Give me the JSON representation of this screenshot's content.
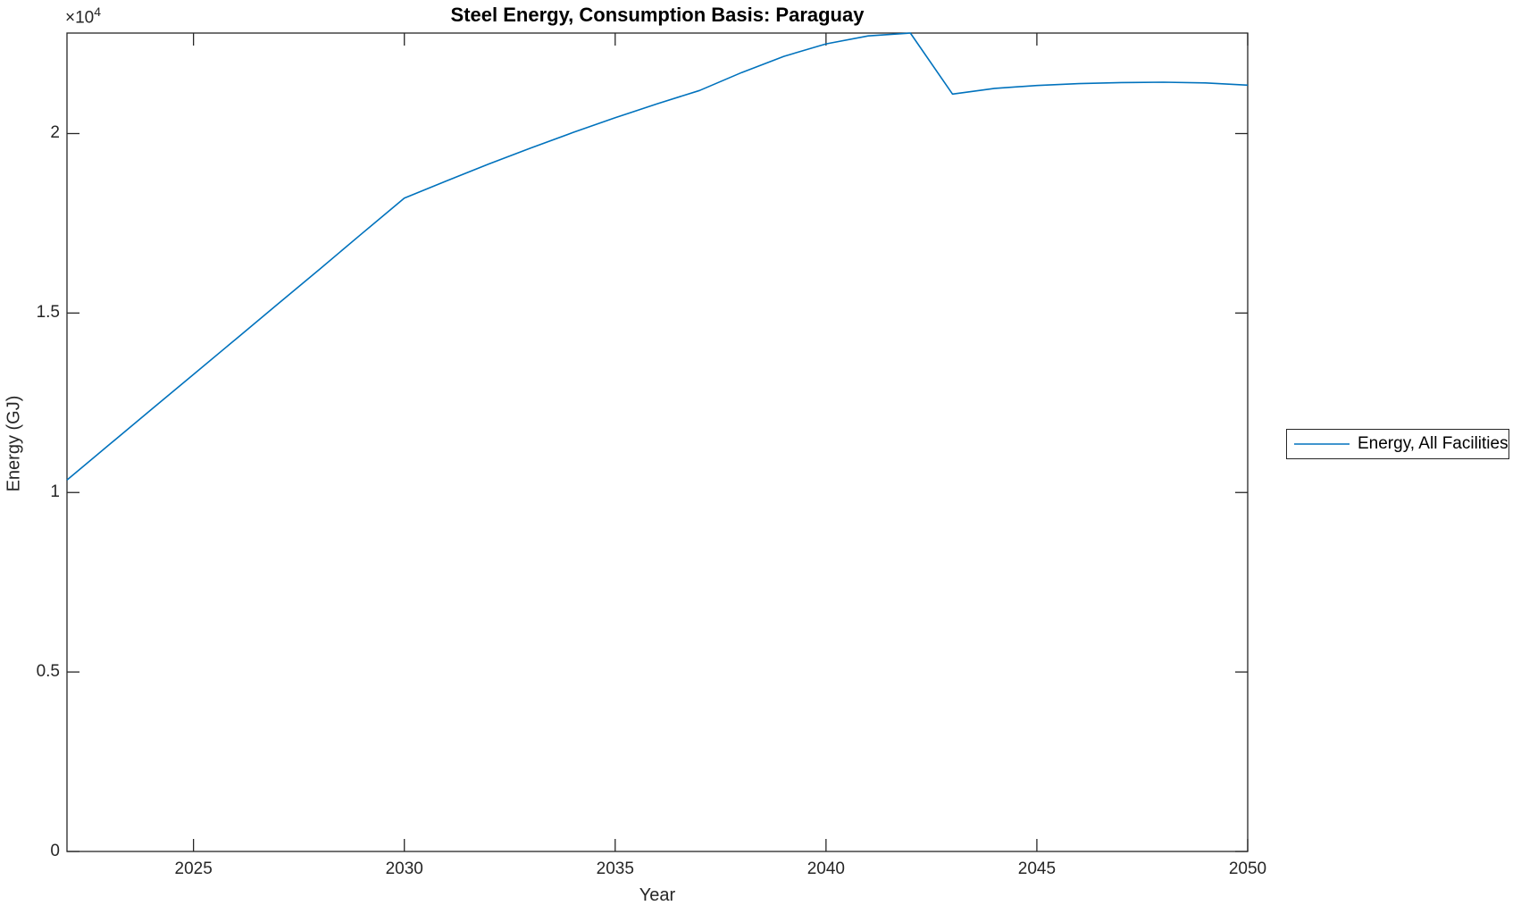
{
  "figure": {
    "title": "Steel Energy, Consumption Basis: Paraguay",
    "xlabel": "Year",
    "ylabel": "Energy (GJ)",
    "y_axis_multiplier": "×10",
    "y_axis_multiplier_exponent": "4",
    "legend": {
      "entries": [
        {
          "label": "Energy, All Facilities",
          "color": "#0072BD"
        }
      ],
      "position": "outside-right"
    },
    "colors": {
      "background": "#ffffff",
      "axis": "#262626",
      "line": "#0072BD"
    }
  },
  "chart_data": {
    "type": "line",
    "title": "Steel Energy, Consumption Basis: Paraguay",
    "xlabel": "Year",
    "ylabel": "Energy (GJ)",
    "xlim": [
      2022,
      2050
    ],
    "ylim": [
      0,
      22800
    ],
    "xticks": [
      2025,
      2030,
      2035,
      2040,
      2045,
      2050
    ],
    "xtick_labels": [
      "2025",
      "2030",
      "2035",
      "2040",
      "2045",
      "2050"
    ],
    "yticks": [
      0,
      5000,
      10000,
      15000,
      20000
    ],
    "ytick_labels": [
      "0",
      "0.5",
      "1",
      "1.5",
      "2"
    ],
    "grid": false,
    "box": true,
    "tick_direction": "in",
    "legend_position": "outside-right",
    "series": [
      {
        "name": "Energy, All Facilities",
        "color": "#0072BD",
        "x": [
          2022,
          2023,
          2024,
          2025,
          2026,
          2027,
          2028,
          2029,
          2030,
          2031,
          2032,
          2033,
          2034,
          2035,
          2036,
          2037,
          2038,
          2039,
          2040,
          2041,
          2042,
          2043,
          2044,
          2045,
          2046,
          2047,
          2048,
          2049,
          2050
        ],
        "y": [
          10350,
          11330,
          12310,
          13290,
          14270,
          15250,
          16230,
          17220,
          18200,
          18680,
          19150,
          19600,
          20030,
          20440,
          20830,
          21200,
          21700,
          22150,
          22500,
          22720,
          22800,
          21100,
          21260,
          21340,
          21390,
          21420,
          21430,
          21410,
          21350
        ]
      }
    ]
  }
}
